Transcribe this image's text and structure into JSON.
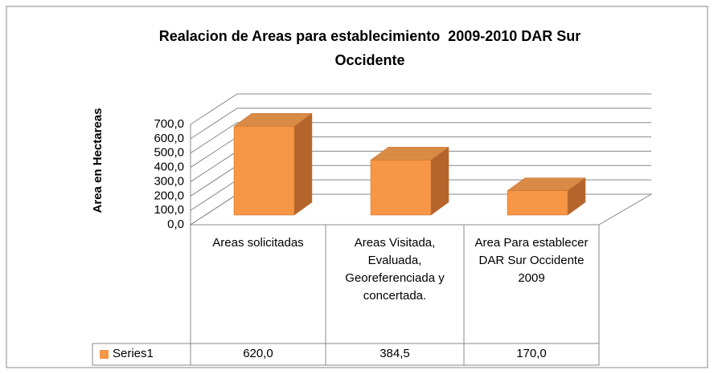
{
  "chart_data": {
    "type": "bar3d",
    "title": "Realacion de Areas para establecimiento  2009-2010 DAR Sur Occidente",
    "y_label": "Area en Hectareas",
    "categories": [
      "Areas solicitadas",
      "Areas Visitada, Evaluada, Georeferenciada y concertada.",
      "Area Para establecer DAR Sur Occidente 2009"
    ],
    "series": [
      {
        "name": "Series1",
        "color": "#f79646",
        "values": [
          620.0,
          384.5,
          170.0
        ],
        "value_labels": [
          "620,0",
          "384,5",
          "170,0"
        ]
      }
    ],
    "ylim": [
      0,
      700
    ],
    "yticks": [
      {
        "value": 0,
        "label": "0,0"
      },
      {
        "value": 100,
        "label": "100,0"
      },
      {
        "value": 200,
        "label": "200,0"
      },
      {
        "value": 300,
        "label": "300,0"
      },
      {
        "value": 400,
        "label": "400,0"
      },
      {
        "value": 500,
        "label": "500,0"
      },
      {
        "value": 600,
        "label": "600,0"
      },
      {
        "value": 700,
        "label": "700,0"
      }
    ],
    "grid": true,
    "data_table": true
  }
}
